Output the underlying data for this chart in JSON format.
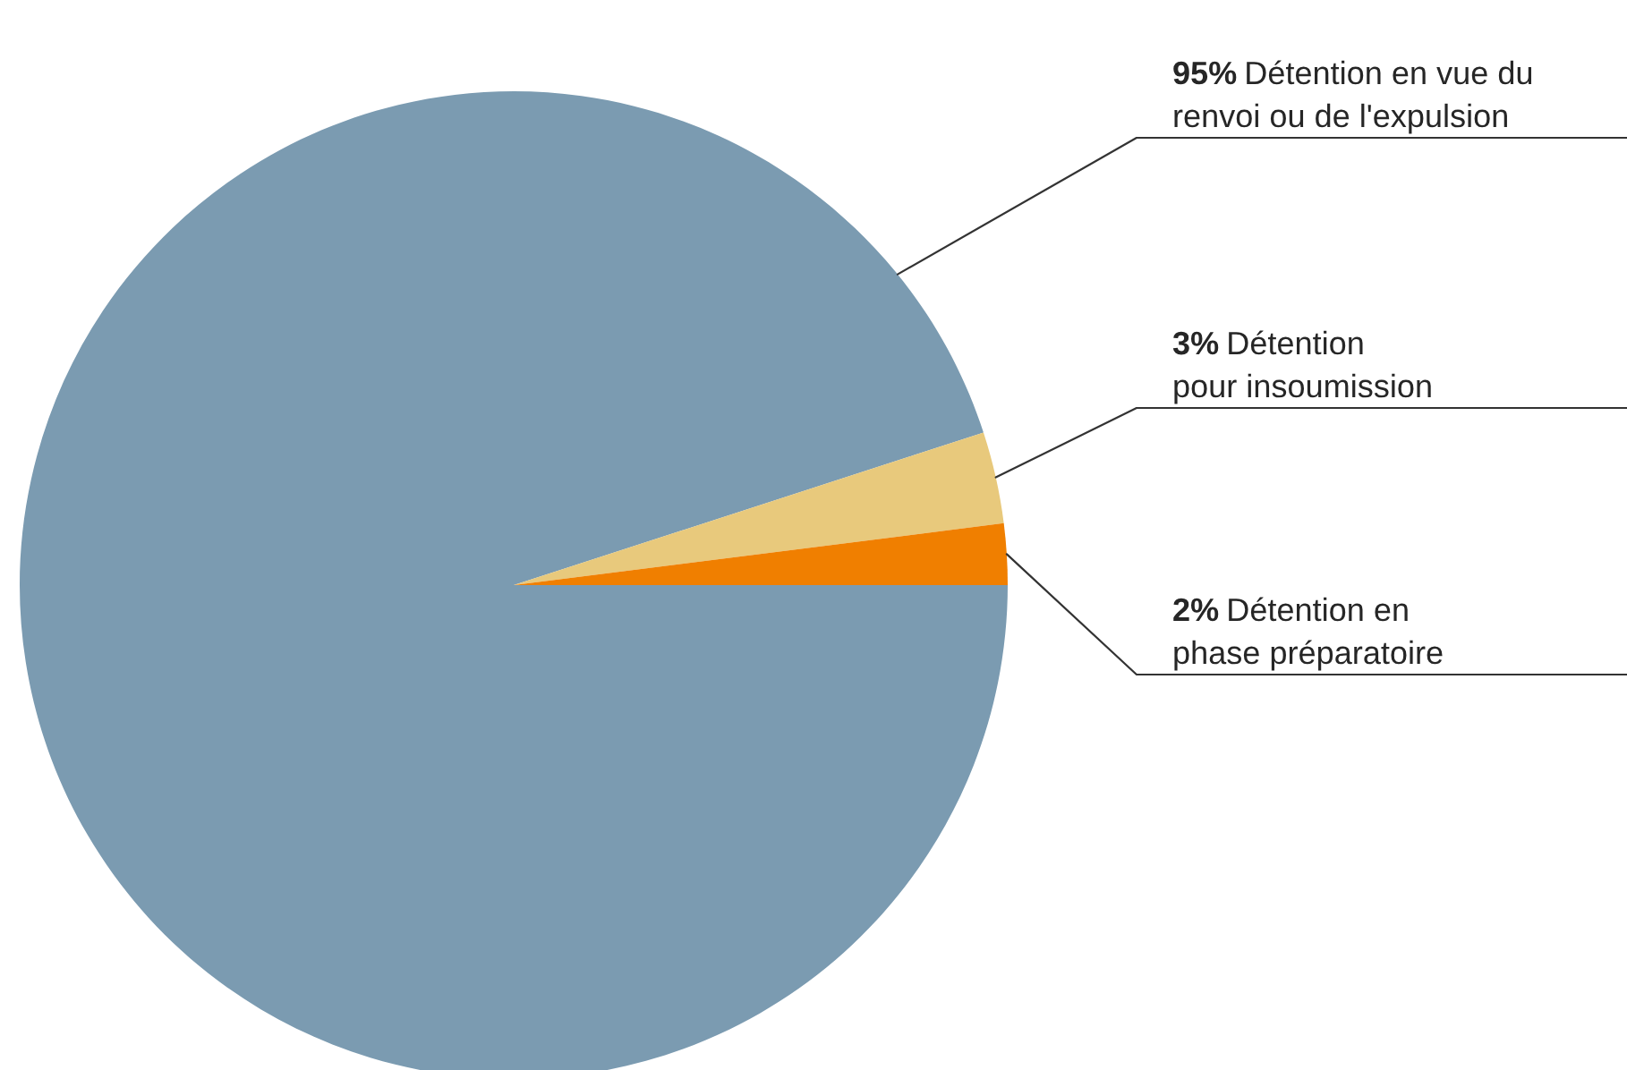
{
  "chart_data": {
    "type": "pie",
    "categories": [
      "Détention en vue du\nrenvoi ou de l'expulsion",
      "Détention\npour insoumission",
      "Détention en\nphase préparatoire"
    ],
    "values": [
      95,
      3,
      2
    ],
    "value_labels": [
      "95%",
      "3%",
      "2%"
    ],
    "colors": [
      "#7b9bb1",
      "#e8c97c",
      "#f07f00"
    ]
  }
}
